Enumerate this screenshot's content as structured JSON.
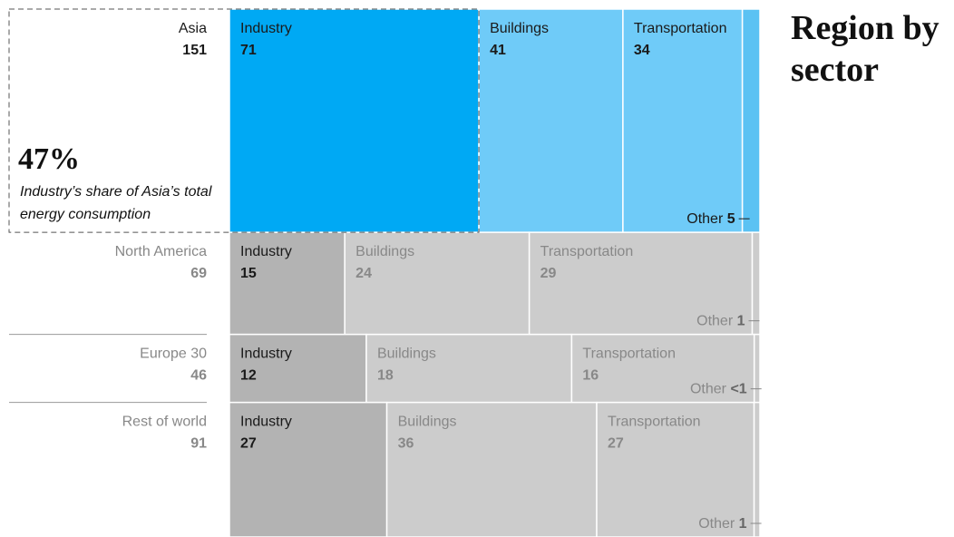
{
  "chart_data": {
    "type": "treemap",
    "title": "Region by sector",
    "annotation": {
      "value": 47,
      "value_label": "47%",
      "text": "Industry’s share of Asia’s total energy consumption"
    },
    "regions": [
      {
        "name": "Asia",
        "total": 151,
        "highlight": true,
        "sectors": [
          {
            "name": "Industry",
            "value": 71,
            "color": "#00a9f4"
          },
          {
            "name": "Buildings",
            "value": 41,
            "color": "#6fcbf8"
          },
          {
            "name": "Transportation",
            "value": 34,
            "color": "#6fcbf8"
          },
          {
            "name": "Other",
            "value": 5,
            "color": "#5bc2f3"
          }
        ]
      },
      {
        "name": "North America",
        "total": 69,
        "highlight": false,
        "sectors": [
          {
            "name": "Industry",
            "value": 15,
            "color": "#b3b3b3"
          },
          {
            "name": "Buildings",
            "value": 24,
            "color": "#cccccc"
          },
          {
            "name": "Transportation",
            "value": 29,
            "color": "#cccccc"
          },
          {
            "name": "Other",
            "value": 1,
            "color": "#cccccc"
          }
        ]
      },
      {
        "name": "Europe 30",
        "total": 46,
        "highlight": false,
        "sectors": [
          {
            "name": "Industry",
            "value": 12,
            "color": "#b3b3b3"
          },
          {
            "name": "Buildings",
            "value": 18,
            "color": "#cccccc"
          },
          {
            "name": "Transportation",
            "value": 16,
            "color": "#cccccc"
          },
          {
            "name": "Other",
            "value": 0.5,
            "value_label": "<1",
            "color": "#cccccc"
          }
        ]
      },
      {
        "name": "Rest of world",
        "total": 91,
        "highlight": false,
        "sectors": [
          {
            "name": "Industry",
            "value": 27,
            "color": "#b3b3b3"
          },
          {
            "name": "Buildings",
            "value": 36,
            "color": "#cccccc"
          },
          {
            "name": "Transportation",
            "value": 27,
            "color": "#cccccc"
          },
          {
            "name": "Other",
            "value": 1,
            "color": "#cccccc"
          }
        ]
      }
    ]
  }
}
